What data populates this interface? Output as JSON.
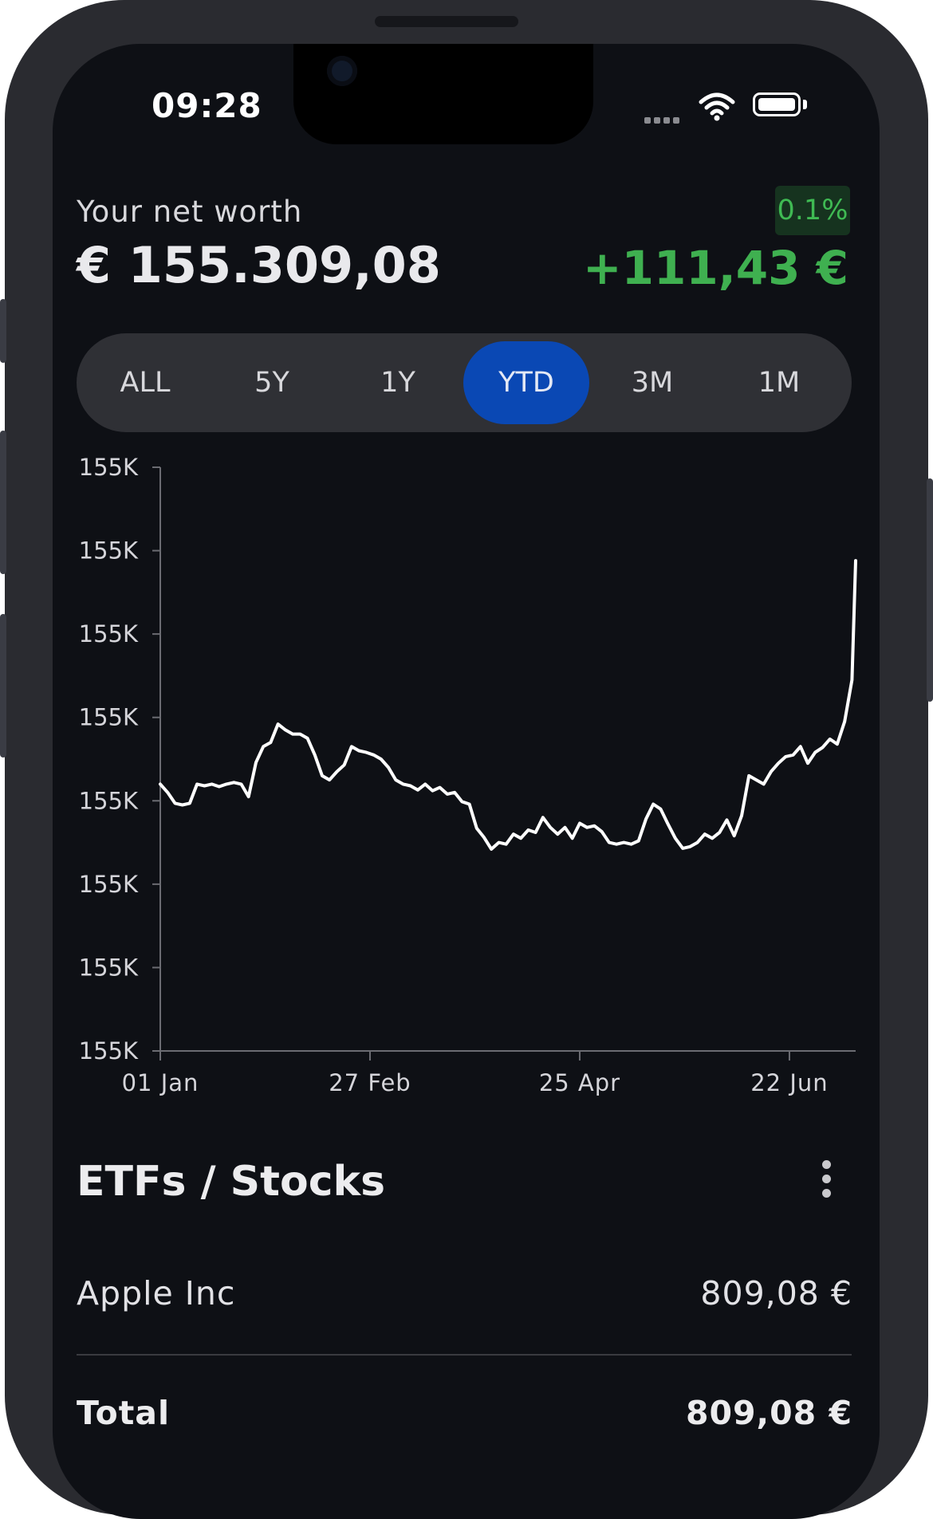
{
  "status": {
    "time": "09:28"
  },
  "header": {
    "label": "Your net worth",
    "value": "€ 155.309,08",
    "change_percent": "0.1%",
    "change_value": "+111,43 €"
  },
  "range_tabs": [
    {
      "label": "ALL",
      "active": false
    },
    {
      "label": "5Y",
      "active": false
    },
    {
      "label": "1Y",
      "active": false
    },
    {
      "label": "YTD",
      "active": true
    },
    {
      "label": "3M",
      "active": false
    },
    {
      "label": "1M",
      "active": false
    }
  ],
  "colors": {
    "background": "#0e1015",
    "accent": "#0a48b4",
    "positive": "#3fb050",
    "line": "#ffffff"
  },
  "chart_data": {
    "type": "line",
    "title": "",
    "xlabel": "",
    "ylabel": "",
    "y_tick_labels": [
      "155K",
      "155K",
      "155K",
      "155K",
      "155K",
      "155K",
      "155K",
      "155K"
    ],
    "x_tick_labels": [
      "01 Jan",
      "27 Feb",
      "25 Apr",
      "22 Jun"
    ],
    "ylim": [
      0,
      7
    ],
    "xlim": [
      0,
      189
    ],
    "grid": false,
    "series": [
      {
        "values": [
          [
            0,
            3.2
          ],
          [
            2,
            3.1
          ],
          [
            4,
            2.97
          ],
          [
            6,
            2.95
          ],
          [
            8,
            2.97
          ],
          [
            10,
            3.2
          ],
          [
            12,
            3.18
          ],
          [
            14,
            3.2
          ],
          [
            16,
            3.17
          ],
          [
            18,
            3.2
          ],
          [
            20,
            3.22
          ],
          [
            22,
            3.2
          ],
          [
            24,
            3.05
          ],
          [
            26,
            3.46
          ],
          [
            28,
            3.65
          ],
          [
            30,
            3.7
          ],
          [
            32,
            3.92
          ],
          [
            34,
            3.85
          ],
          [
            36,
            3.8
          ],
          [
            38,
            3.8
          ],
          [
            40,
            3.75
          ],
          [
            42,
            3.55
          ],
          [
            44,
            3.3
          ],
          [
            46,
            3.25
          ],
          [
            48,
            3.35
          ],
          [
            50,
            3.43
          ],
          [
            52,
            3.65
          ],
          [
            54,
            3.6
          ],
          [
            56,
            3.58
          ],
          [
            58,
            3.55
          ],
          [
            60,
            3.5
          ],
          [
            62,
            3.4
          ],
          [
            64,
            3.25
          ],
          [
            66,
            3.2
          ],
          [
            68,
            3.18
          ],
          [
            70,
            3.13
          ],
          [
            72,
            3.2
          ],
          [
            74,
            3.12
          ],
          [
            76,
            3.16
          ],
          [
            78,
            3.08
          ],
          [
            80,
            3.1
          ],
          [
            82,
            2.99
          ],
          [
            84,
            2.96
          ],
          [
            86,
            2.67
          ],
          [
            88,
            2.56
          ],
          [
            90,
            2.42
          ],
          [
            92,
            2.5
          ],
          [
            94,
            2.48
          ],
          [
            96,
            2.6
          ],
          [
            98,
            2.55
          ],
          [
            100,
            2.65
          ],
          [
            102,
            2.62
          ],
          [
            104,
            2.8
          ],
          [
            106,
            2.68
          ],
          [
            108,
            2.6
          ],
          [
            110,
            2.68
          ],
          [
            112,
            2.55
          ],
          [
            114,
            2.73
          ],
          [
            116,
            2.68
          ],
          [
            118,
            2.7
          ],
          [
            120,
            2.63
          ],
          [
            122,
            2.5
          ],
          [
            124,
            2.48
          ],
          [
            126,
            2.5
          ],
          [
            128,
            2.48
          ],
          [
            130,
            2.52
          ],
          [
            132,
            2.78
          ],
          [
            134,
            2.96
          ],
          [
            136,
            2.9
          ],
          [
            138,
            2.72
          ],
          [
            140,
            2.55
          ],
          [
            142,
            2.43
          ],
          [
            144,
            2.45
          ],
          [
            146,
            2.5
          ],
          [
            148,
            2.6
          ],
          [
            150,
            2.55
          ],
          [
            152,
            2.62
          ],
          [
            154,
            2.77
          ],
          [
            156,
            2.58
          ],
          [
            158,
            2.82
          ],
          [
            160,
            3.3
          ],
          [
            162,
            3.25
          ],
          [
            164,
            3.2
          ],
          [
            166,
            3.35
          ],
          [
            168,
            3.45
          ],
          [
            170,
            3.53
          ],
          [
            172,
            3.55
          ],
          [
            174,
            3.65
          ],
          [
            176,
            3.45
          ],
          [
            178,
            3.58
          ],
          [
            180,
            3.64
          ],
          [
            182,
            3.74
          ],
          [
            184,
            3.68
          ],
          [
            186,
            3.95
          ],
          [
            188,
            4.45
          ],
          [
            189,
            5.88
          ]
        ]
      }
    ]
  },
  "holdings": {
    "title": "ETFs / Stocks",
    "rows": [
      {
        "name": "Apple Inc",
        "value": "809,08 €"
      }
    ],
    "total_label": "Total",
    "total_value": "809,08 €"
  }
}
